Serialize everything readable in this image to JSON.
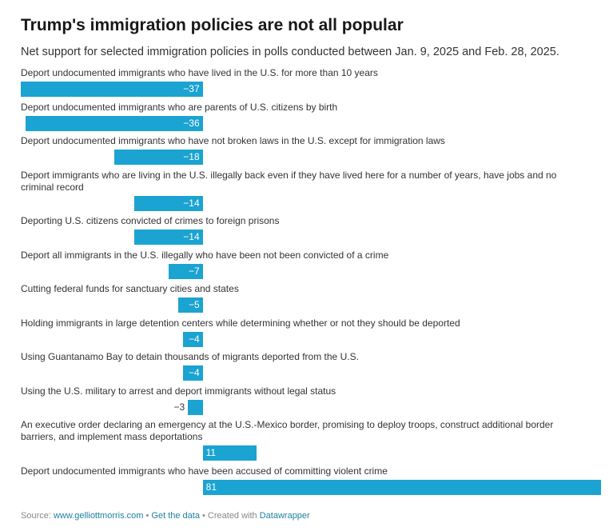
{
  "title": "Trump's immigration policies are not all popular",
  "subtitle": "Net support for selected immigration policies in polls conducted between Jan. 9, 2025 and Feb. 28, 2025.",
  "footer": {
    "source_prefix": "Source: ",
    "source_link": "www.gelliottmorris.com",
    "sep1": " • ",
    "get_data": "Get the data",
    "sep2": " • Created with ",
    "tool": "Datawrapper"
  },
  "colors": {
    "bar": "#1ba3d1",
    "text": "#333333",
    "link": "#1d81a2"
  },
  "chart_data": {
    "type": "bar",
    "orientation": "horizontal",
    "title": "Trump's immigration policies are not all popular",
    "subtitle": "Net support for selected immigration policies in polls conducted between Jan. 9, 2025 and Feb. 28, 2025.",
    "xlim": [
      -37,
      81
    ],
    "grid": false,
    "categories": [
      "Deport undocumented immigrants who have lived in the U.S. for more than 10 years",
      "Deport undocumented immigrants who are parents of U.S. citizens by birth",
      "Deport undocumented immigrants who have not broken laws in the U.S. except for immigration laws",
      "Deport immigrants who are living in the U.S. illegally back even if they have lived here for a number of years, have jobs and no criminal record",
      "Deporting U.S. citizens convicted of crimes to foreign prisons",
      "Deport all immigrants in the U.S. illegally who have been not been convicted of a crime",
      "Cutting federal funds for sanctuary cities and states",
      "Holding immigrants in large detention centers while determining whether or not they should be deported",
      "Using Guantanamo Bay to detain thousands of migrants deported from the U.S.",
      "Using the U.S. military to arrest and deport immigrants without legal status",
      "An executive order declaring an emergency at the U.S.-Mexico border, promising to deploy troops, construct additional border barriers, and implement mass deportations",
      "Deport undocumented immigrants who have been accused of committing violent crime"
    ],
    "values": [
      -37,
      -36,
      -18,
      -14,
      -14,
      -7,
      -5,
      -4,
      -4,
      -3,
      11,
      81
    ],
    "value_labels": [
      "−37",
      "−36",
      "−18",
      "−14",
      "−14",
      "−7",
      "−5",
      "−4",
      "−4",
      "−3",
      "11",
      "81"
    ]
  }
}
